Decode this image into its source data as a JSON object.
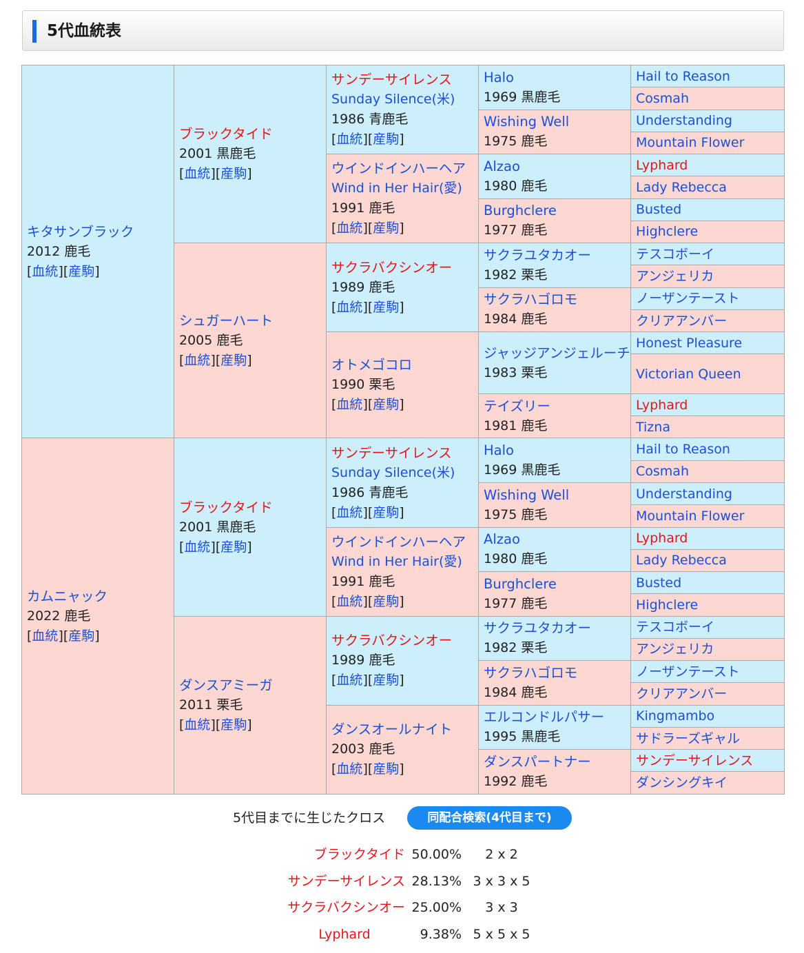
{
  "header": {
    "title": "5代血統表"
  },
  "links": {
    "blood": "血統",
    "foals": "産駒"
  },
  "g1": [
    {
      "name": "キタサンブラック",
      "year": "2012 鹿毛"
    },
    {
      "name": "カムニャック",
      "year": "2022 鹿毛"
    }
  ],
  "g2": [
    {
      "name": "ブラックタイド",
      "year": "2001 黒鹿毛"
    },
    {
      "name": "シュガーハート",
      "year": "2005 鹿毛"
    },
    {
      "name": "ブラックタイド",
      "year": "2001 黒鹿毛"
    },
    {
      "name": "ダンスアミーガ",
      "year": "2011 栗毛"
    }
  ],
  "g3": [
    {
      "name": "サンデーサイレンス",
      "en": "Sunday Silence(米)",
      "year": "1986 青鹿毛"
    },
    {
      "name": "ウインドインハーヘア",
      "en": "Wind in Her Hair(愛)",
      "year": "1991 鹿毛"
    },
    {
      "name": "サクラバクシンオー",
      "year": "1989 鹿毛"
    },
    {
      "name": "オトメゴコロ",
      "year": "1990 栗毛"
    },
    {
      "name": "サンデーサイレンス",
      "en": "Sunday Silence(米)",
      "year": "1986 青鹿毛"
    },
    {
      "name": "ウインドインハーヘア",
      "en": "Wind in Her Hair(愛)",
      "year": "1991 鹿毛"
    },
    {
      "name": "サクラバクシンオー",
      "year": "1989 鹿毛"
    },
    {
      "name": "ダンスオールナイト",
      "year": "2003 鹿毛"
    }
  ],
  "g4": [
    {
      "name": "Halo",
      "year": "1969 黒鹿毛"
    },
    {
      "name": "Wishing Well",
      "year": "1975 鹿毛"
    },
    {
      "name": "Alzao",
      "year": "1980 鹿毛"
    },
    {
      "name": "Burghclere",
      "year": "1977 鹿毛"
    },
    {
      "name": "サクラユタカオー",
      "year": "1982 栗毛"
    },
    {
      "name": "サクラハゴロモ",
      "year": "1984 鹿毛"
    },
    {
      "name": "ジャッジアンジェルーチ",
      "year": "1983 栗毛"
    },
    {
      "name": "テイズリー",
      "year": "1981 鹿毛"
    },
    {
      "name": "Halo",
      "year": "1969 黒鹿毛"
    },
    {
      "name": "Wishing Well",
      "year": "1975 鹿毛"
    },
    {
      "name": "Alzao",
      "year": "1980 鹿毛"
    },
    {
      "name": "Burghclere",
      "year": "1977 鹿毛"
    },
    {
      "name": "サクラユタカオー",
      "year": "1982 栗毛"
    },
    {
      "name": "サクラハゴロモ",
      "year": "1984 鹿毛"
    },
    {
      "name": "エルコンドルパサー",
      "year": "1995 黒鹿毛"
    },
    {
      "name": "ダンスパートナー",
      "year": "1992 鹿毛"
    }
  ],
  "g5": [
    "Hail to Reason",
    "Cosmah",
    "Understanding",
    "Mountain Flower",
    "Lyphard",
    "Lady Rebecca",
    "Busted",
    "Highclere",
    "テスコボーイ",
    "アンジェリカ",
    "ノーザンテースト",
    "クリアアンバー",
    "Honest Pleasure",
    "Victorian Queen",
    "Lyphard",
    "Tizna",
    "Hail to Reason",
    "Cosmah",
    "Understanding",
    "Mountain Flower",
    "Lyphard",
    "Lady Rebecca",
    "Busted",
    "Highclere",
    "テスコボーイ",
    "アンジェリカ",
    "ノーザンテースト",
    "クリアアンバー",
    "Kingmambo",
    "サドラーズギャル",
    "サンデーサイレンス",
    "ダンシングキイ"
  ],
  "cross": {
    "label": "5代目までに生じたクロス",
    "search_button": "同配合検索(4代目まで)",
    "items": [
      {
        "name": "ブラックタイド",
        "percent": "50.00%",
        "degree": "2 x 2"
      },
      {
        "name": "サンデーサイレンス",
        "percent": "28.13%",
        "degree": "3 x 3 x 5"
      },
      {
        "name": "サクラバクシンオー",
        "percent": "25.00%",
        "degree": "3 x 3"
      },
      {
        "name": "Lyphard",
        "percent": "9.38%",
        "degree": "5 x 5 x 5"
      }
    ]
  },
  "colors": {
    "sire_bg": "#cdeffc",
    "dam_bg": "#fdd8d3",
    "link": "#1c4fd6",
    "cross_red": "#e8141b",
    "button": "#1a8af0"
  }
}
